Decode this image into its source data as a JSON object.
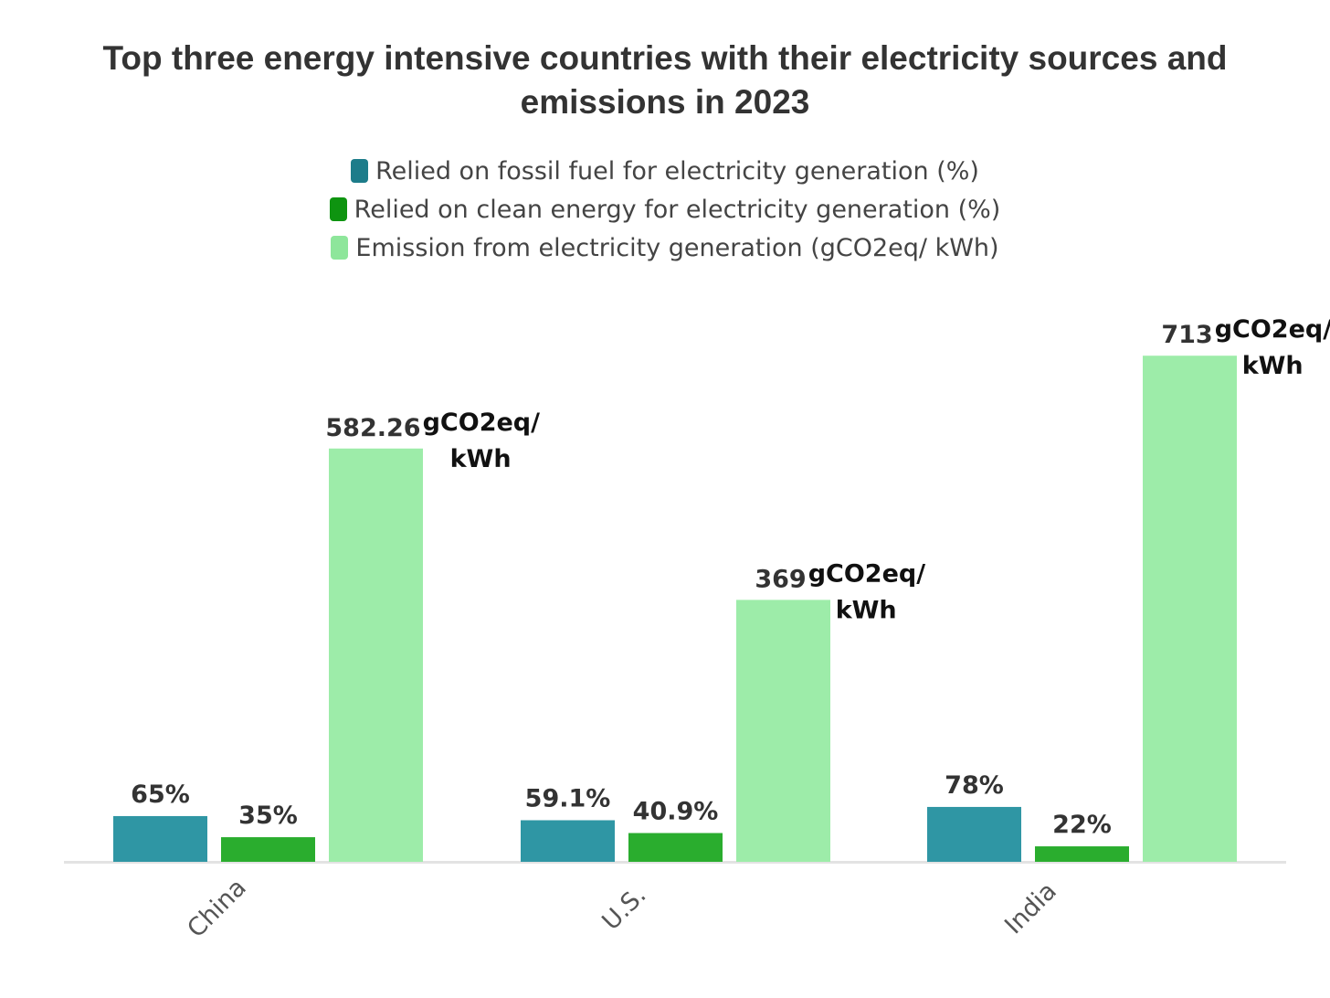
{
  "chart_data": {
    "type": "bar",
    "title": "Top three energy intensive countries with their electricity sources and emissions in 2023",
    "title_lines": [
      "Top three energy intensive countries with their electricity sources and",
      "emissions in 2023"
    ],
    "categories": [
      "China",
      "U.S.",
      "India"
    ],
    "series": [
      {
        "name": "Relied on fossil fuel for electricity generation (%)",
        "color": "#2f96a4",
        "values": [
          65,
          59.1,
          78
        ],
        "labels": [
          "65",
          "59.1",
          "78"
        ],
        "unit": "%"
      },
      {
        "name": "Relied on clean energy for electricity generation (%)",
        "color": "#2aad2e",
        "values": [
          35,
          40.9,
          22
        ],
        "labels": [
          "35",
          "40.9",
          "22"
        ],
        "unit": "%"
      },
      {
        "name": "Emission from electricity generation (gCO2eq/ kWh)",
        "color": "#9deca9",
        "values": [
          582.26,
          369,
          713
        ],
        "labels": [
          "582.26",
          "369",
          "713"
        ],
        "unit_lines": [
          "gCO2eq/",
          "kWh"
        ]
      }
    ],
    "legend_swatch_colors": [
      "#1d7c8a",
      "#0e9410",
      "#8ee69b"
    ],
    "ylim": [
      0,
      800
    ],
    "grid": false,
    "legend_position": "top-center",
    "xlabel": "",
    "ylabel": ""
  }
}
